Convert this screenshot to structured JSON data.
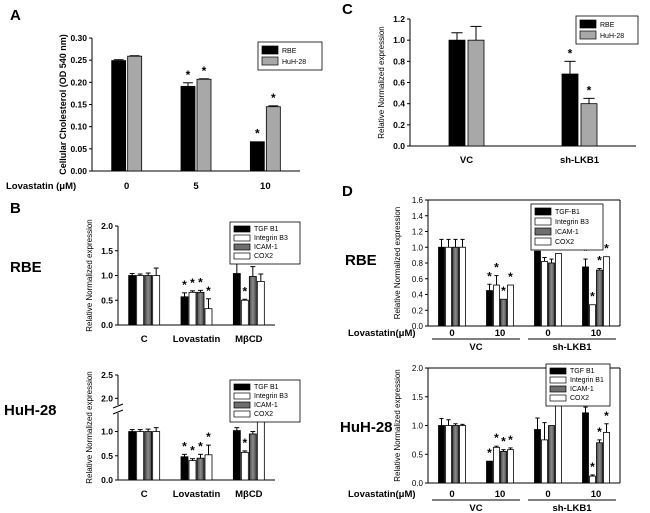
{
  "figure": {
    "panel_labels": [
      "A",
      "B",
      "C",
      "D"
    ],
    "row_labels": [
      "RBE",
      "HuH-28"
    ],
    "colors": {
      "black": "#000000",
      "gray": "#a8a8a8",
      "darkgray": "#6e6e6e",
      "white": "#ffffff"
    }
  },
  "chart_data": [
    {
      "id": "A",
      "type": "bar",
      "ylabel": "Cellular Cholesterol (OD 540 nm)",
      "xlabel_prefix": "Lovastatin (μM)",
      "categories": [
        "0",
        "5",
        "10"
      ],
      "ylim": [
        0,
        0.3
      ],
      "yticks": [
        "0.00",
        "0.05",
        "0.10",
        "0.15",
        "0.20",
        "0.25",
        "0.30"
      ],
      "series": [
        {
          "name": "RBE",
          "values": [
            0.249,
            0.191,
            0.066
          ],
          "errors": [
            0.002,
            0.008,
            0.0
          ],
          "stars": [
            false,
            true,
            true
          ]
        },
        {
          "name": "HuH-28",
          "values": [
            0.259,
            0.207,
            0.145
          ],
          "errors": [
            0.001,
            0.001,
            0.002
          ],
          "stars": [
            false,
            true,
            true
          ]
        }
      ]
    },
    {
      "id": "C",
      "type": "bar",
      "ylabel": "Relative Normalized expression",
      "categories": [
        "VC",
        "sh-LKB1"
      ],
      "ylim": [
        0,
        1.2
      ],
      "yticks": [
        "0.0",
        "0.2",
        "0.4",
        "0.6",
        "0.8",
        "1.0",
        "1.2"
      ],
      "series": [
        {
          "name": "RBE",
          "values": [
            1.0,
            0.68
          ],
          "errors": [
            0.07,
            0.12
          ],
          "stars": [
            false,
            true
          ]
        },
        {
          "name": "HuH-28",
          "values": [
            1.0,
            0.4
          ],
          "errors": [
            0.13,
            0.05
          ],
          "stars": [
            false,
            true
          ]
        }
      ]
    },
    {
      "id": "B-RBE",
      "type": "bar",
      "ylabel": "Relative Normalized expression",
      "categories": [
        "C",
        "Lovastatin",
        "MβCD"
      ],
      "ylim": [
        0,
        2.0
      ],
      "yticks": [
        "0.0",
        "0.5",
        "1.0",
        "1.5",
        "2.0"
      ],
      "series": [
        {
          "name": "TGF B1",
          "values": [
            1.0,
            0.57,
            1.04
          ],
          "errors": [
            0.04,
            0.08,
            0.3
          ],
          "stars": [
            false,
            true,
            false
          ]
        },
        {
          "name": "Integrin B3",
          "values": [
            1.0,
            0.66,
            0.5
          ],
          "errors": [
            0.03,
            0.03,
            0.02
          ],
          "stars": [
            false,
            true,
            true
          ]
        },
        {
          "name": "ICAM-1",
          "values": [
            1.0,
            0.66,
            0.98
          ],
          "errors": [
            0.05,
            0.04,
            0.2
          ],
          "stars": [
            false,
            true,
            false
          ]
        },
        {
          "name": "COX2",
          "values": [
            1.0,
            0.33,
            0.88
          ],
          "errors": [
            0.15,
            0.2,
            0.15
          ],
          "stars": [
            false,
            true,
            false
          ]
        }
      ]
    },
    {
      "id": "B-HuH-28",
      "type": "bar",
      "ylabel": "Relative Normalized expression",
      "categories": [
        "C",
        "Lovastatin",
        "MβCD"
      ],
      "ylim": [
        0,
        2.5
      ],
      "axis_break": [
        1.3,
        1.9
      ],
      "yticks": [
        "0.0",
        "0.5",
        "1.0",
        "2.0",
        "2.5"
      ],
      "series": [
        {
          "name": "TGF B1",
          "values": [
            1.0,
            0.48,
            1.02
          ],
          "errors": [
            0.04,
            0.05,
            0.06
          ],
          "stars": [
            false,
            true,
            false
          ]
        },
        {
          "name": "Integrin B3",
          "values": [
            1.0,
            0.4,
            0.57
          ],
          "errors": [
            0.04,
            0.04,
            0.03
          ],
          "stars": [
            false,
            true,
            true
          ]
        },
        {
          "name": "ICAM-1",
          "values": [
            1.0,
            0.45,
            0.95
          ],
          "errors": [
            0.05,
            0.08,
            0.05
          ],
          "stars": [
            false,
            true,
            false
          ]
        },
        {
          "name": "COX2",
          "values": [
            1.0,
            0.52,
            2.08
          ],
          "errors": [
            0.08,
            0.2,
            0.06
          ],
          "stars": [
            false,
            true,
            true
          ]
        }
      ]
    },
    {
      "id": "D-RBE",
      "type": "bar",
      "ylabel": "Relative Normalized expression",
      "xlabel_prefix": "Lovastatin(μM)",
      "categories": [
        "0",
        "10",
        "0",
        "10"
      ],
      "groups": [
        "VC",
        "sh-LKB1"
      ],
      "ylim": [
        0,
        1.6
      ],
      "yticks": [
        "0.0",
        "0.2",
        "0.4",
        "0.6",
        "0.8",
        "1.0",
        "1.2",
        "1.4",
        "1.6"
      ],
      "series": [
        {
          "name": "TGF-B1",
          "values": [
            1.0,
            0.45,
            0.95,
            0.75
          ],
          "errors": [
            0.1,
            0.08,
            0.0,
            0.1
          ],
          "stars": [
            false,
            true,
            false,
            true
          ]
        },
        {
          "name": "Integrin B3",
          "values": [
            1.0,
            0.52,
            0.82,
            0.27
          ],
          "errors": [
            0.1,
            0.12,
            0.05,
            0.0
          ],
          "stars": [
            false,
            true,
            false,
            true
          ]
        },
        {
          "name": "ICAM-1",
          "values": [
            1.0,
            0.34,
            0.8,
            0.71
          ],
          "errors": [
            0.1,
            0.0,
            0.05,
            0.02
          ],
          "stars": [
            false,
            true,
            false,
            true
          ]
        },
        {
          "name": "COX2",
          "values": [
            1.0,
            0.52,
            0.92,
            0.88
          ],
          "errors": [
            0.1,
            0.0,
            0.0,
            0.0
          ],
          "stars": [
            false,
            true,
            false,
            true
          ]
        }
      ]
    },
    {
      "id": "D-HuH-28",
      "type": "bar",
      "ylabel": "Relative Normalized expression",
      "xlabel_prefix": "Lovastatin(μM)",
      "categories": [
        "0",
        "10",
        "0",
        "10"
      ],
      "groups": [
        "VC",
        "sh-LKB1"
      ],
      "ylim": [
        0,
        2.0
      ],
      "yticks": [
        "0.0",
        "0.5",
        "1.0",
        "1.5",
        "2.0"
      ],
      "series": [
        {
          "name": "TGF B1",
          "values": [
            1.0,
            0.38,
            0.93,
            1.22
          ],
          "errors": [
            0.12,
            0.0,
            0.2,
            0.1
          ],
          "stars": [
            false,
            true,
            false,
            true
          ]
        },
        {
          "name": "Integrin B1",
          "values": [
            1.0,
            0.62,
            0.75,
            0.12
          ],
          "errors": [
            0.1,
            0.02,
            0.3,
            0.02
          ],
          "stars": [
            false,
            true,
            false,
            true
          ]
        },
        {
          "name": "ICAM-1",
          "values": [
            1.0,
            0.55,
            1.0,
            0.7
          ],
          "errors": [
            0.03,
            0.03,
            0.0,
            0.05
          ],
          "stars": [
            false,
            true,
            false,
            true
          ]
        },
        {
          "name": "COX2",
          "values": [
            1.0,
            0.58,
            1.35,
            0.88
          ],
          "errors": [
            0.02,
            0.03,
            0.12,
            0.15
          ],
          "stars": [
            false,
            true,
            false,
            true
          ]
        }
      ]
    }
  ]
}
